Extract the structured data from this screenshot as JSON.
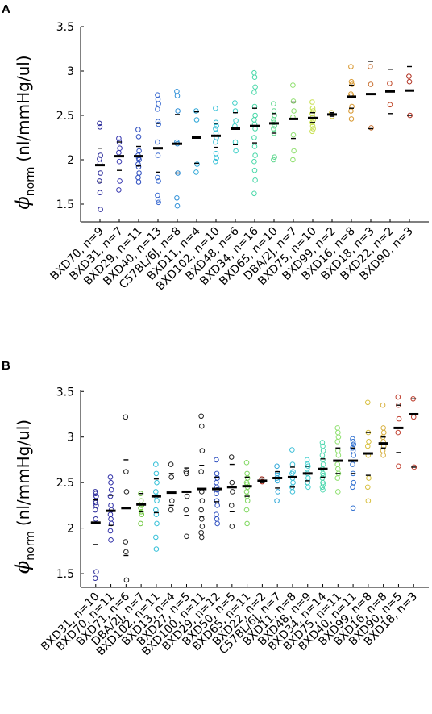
{
  "chart_data": [
    {
      "panel": "A",
      "type": "scatter",
      "ylabel_symbol": "ϕ",
      "ylabel_subscript": "norm",
      "ylabel_units": "(nl/mmHg/ul)",
      "ylim": [
        1.3,
        3.5
      ],
      "yticks": [
        "1.5",
        "2",
        "2.5",
        "3",
        "3.5"
      ],
      "ytick_values": [
        1.5,
        2,
        2.5,
        3,
        3.5
      ],
      "grid": false,
      "categories": [
        "BXD70, n=9",
        "BXD31, n=7",
        "BXD29, n=11",
        "BXD40, n=13",
        "C57BL/6J, n=8",
        "BXD11, n=4",
        "BXD102, n=10",
        "BXD48, n=6",
        "BXD34, n=16",
        "BXD65, n=10",
        "DBA/2J, n=7",
        "BXD75, n=10",
        "BXD99, n=2",
        "BXD16, n=8",
        "BXD18, n=3",
        "BXD22, n=2",
        "BXD90, n=3"
      ],
      "colors": [
        "#2a2a9a",
        "#3838b0",
        "#2f4fc0",
        "#3a6ad0",
        "#2f90d8",
        "#2fa8d8",
        "#35c0d8",
        "#40d0c8",
        "#48d8a8",
        "#60d890",
        "#90e070",
        "#c8e050",
        "#d8c840",
        "#d89830",
        "#c87030",
        "#c04828",
        "#b03020"
      ],
      "points": [
        [
          2.41,
          2.37,
          2.05,
          2.01,
          1.96,
          1.85,
          1.76,
          1.63,
          1.44
        ],
        [
          2.24,
          2.2,
          2.13,
          2.08,
          1.98,
          1.76,
          1.66
        ],
        [
          2.34,
          2.26,
          2.1,
          2.05,
          2.02,
          2.0,
          1.95,
          1.92,
          1.85,
          1.8,
          1.75
        ],
        [
          2.73,
          2.68,
          2.63,
          2.57,
          2.43,
          2.4,
          2.2,
          2.05,
          1.76,
          1.6,
          1.55,
          1.52,
          1.8
        ],
        [
          2.77,
          2.72,
          2.55,
          2.2,
          2.18,
          1.85,
          1.57,
          1.48
        ],
        [
          2.55,
          2.45,
          1.95,
          1.86
        ],
        [
          2.58,
          2.42,
          2.38,
          2.35,
          2.3,
          2.25,
          2.2,
          2.07,
          2.02,
          1.98
        ],
        [
          2.64,
          2.55,
          2.44,
          2.38,
          2.2,
          2.1
        ],
        [
          2.98,
          2.93,
          2.82,
          2.76,
          2.6,
          2.5,
          2.45,
          2.4,
          2.35,
          2.25,
          2.15,
          2.05,
          1.98,
          1.88,
          1.77,
          1.62
        ],
        [
          2.63,
          2.55,
          2.5,
          2.45,
          2.42,
          2.38,
          2.35,
          2.3,
          2.03,
          2.0
        ],
        [
          2.84,
          2.66,
          2.55,
          2.48,
          2.28,
          2.1,
          2.0
        ],
        [
          2.65,
          2.58,
          2.55,
          2.52,
          2.48,
          2.45,
          2.42,
          2.38,
          2.35,
          2.32
        ],
        [
          2.53,
          2.49
        ],
        [
          3.05,
          2.88,
          2.85,
          2.74,
          2.72,
          2.6,
          2.55,
          2.46
        ],
        [
          3.05,
          2.85,
          2.36
        ],
        [
          2.86,
          2.62
        ],
        [
          2.94,
          2.88,
          2.5
        ]
      ],
      "means": [
        1.94,
        2.04,
        2.04,
        2.13,
        2.18,
        2.25,
        2.27,
        2.35,
        2.38,
        2.41,
        2.46,
        2.47,
        2.51,
        2.71,
        2.74,
        2.77,
        2.78
      ],
      "whiskers": [
        [
          1.75,
          2.13
        ],
        [
          1.88,
          2.2
        ],
        [
          1.93,
          2.15
        ],
        [
          1.86,
          2.41
        ],
        [
          1.85,
          2.51
        ],
        [
          1.96,
          2.54
        ],
        [
          2.14,
          2.41
        ],
        [
          2.17,
          2.53
        ],
        [
          2.19,
          2.58
        ],
        [
          2.3,
          2.52
        ],
        [
          2.24,
          2.65
        ],
        [
          2.42,
          2.53
        ],
        [
          2.49,
          2.53
        ],
        [
          2.58,
          2.84
        ],
        [
          2.35,
          3.11
        ],
        [
          2.52,
          3.02
        ],
        [
          2.5,
          3.05
        ]
      ]
    },
    {
      "panel": "B",
      "type": "scatter",
      "ylabel_symbol": "ϕ",
      "ylabel_subscript": "norm",
      "ylabel_units": "(nl/mmHg/ul)",
      "ylim": [
        1.35,
        3.52
      ],
      "yticks": [
        "1.5",
        "2",
        "2.5",
        "3",
        "3.5"
      ],
      "ytick_values": [
        1.5,
        2,
        2.5,
        3,
        3.5
      ],
      "grid": false,
      "categories": [
        "BXD31, n=10",
        "BXD70, n=11",
        "BXD71, n=6",
        "DBA/2J, n=7",
        "BXD102, n=11",
        "BXD13, n=4",
        "BXD27, n=5",
        "BXD100, n=11",
        "BXD29, n=12",
        "BXD50, n=5",
        "BXD65, n=11",
        "BXD22, n=2",
        "C57BL/6J, n=7",
        "BXD11, n=8",
        "BXD48, n=9",
        "BXD34, n=14",
        "BXD75, n=11",
        "BXD40, n=11",
        "BXD99, n=8",
        "BXD16, n=8",
        "BXD90, n=5",
        "BXD18, n=3"
      ],
      "colors": [
        "#2a2a9a",
        "#3030a8",
        "#222222",
        "#70c840",
        "#35c0d8",
        "#222222",
        "#222222",
        "#222222",
        "#2f50c0",
        "#222222",
        "#80d860",
        "#b02a1a",
        "#30a8d8",
        "#40c0d8",
        "#48d0d0",
        "#50d8b0",
        "#90e070",
        "#3070d0",
        "#d8c040",
        "#d8b040",
        "#c04030",
        "#c04030"
      ],
      "points": [
        [
          2.4,
          2.38,
          2.35,
          2.3,
          2.28,
          2.25,
          2.2,
          2.1,
          1.52,
          1.45
        ],
        [
          2.56,
          2.5,
          2.42,
          2.35,
          2.25,
          2.2,
          2.15,
          2.1,
          2.05,
          1.97,
          1.87
        ],
        [
          3.22,
          2.62,
          2.4,
          1.85,
          1.74,
          1.43
        ],
        [
          2.38,
          2.3,
          2.25,
          2.22,
          2.18,
          2.15,
          2.05
        ],
        [
          2.7,
          2.6,
          2.5,
          2.4,
          2.35,
          2.3,
          2.2,
          2.15,
          2.05,
          1.9,
          1.77
        ],
        [
          2.7,
          2.56,
          2.3,
          2.2
        ],
        [
          2.62,
          2.6,
          2.35,
          2.2,
          1.91
        ],
        [
          3.23,
          3.12,
          2.85,
          2.62,
          2.4,
          2.3,
          2.2,
          2.1,
          2.02,
          1.95,
          1.9
        ],
        [
          2.75,
          2.6,
          2.55,
          2.5,
          2.45,
          2.42,
          2.38,
          2.3,
          2.25,
          2.15,
          2.1,
          2.05
        ],
        [
          2.78,
          2.5,
          2.4,
          2.25,
          2.02
        ],
        [
          2.72,
          2.6,
          2.55,
          2.5,
          2.48,
          2.45,
          2.4,
          2.35,
          2.3,
          2.2,
          2.05
        ],
        [
          2.54,
          2.51
        ],
        [
          2.68,
          2.6,
          2.58,
          2.55,
          2.52,
          2.4,
          2.3
        ],
        [
          2.86,
          2.7,
          2.62,
          2.6,
          2.55,
          2.5,
          2.45,
          2.4
        ],
        [
          2.75,
          2.7,
          2.68,
          2.65,
          2.6,
          2.55,
          2.5,
          2.5,
          2.45
        ],
        [
          2.94,
          2.9,
          2.85,
          2.8,
          2.75,
          2.7,
          2.65,
          2.6,
          2.58,
          2.55,
          2.5,
          2.48,
          2.45,
          2.42
        ],
        [
          3.1,
          3.05,
          3.0,
          2.95,
          2.85,
          2.8,
          2.7,
          2.65,
          2.6,
          2.55,
          2.4
        ],
        [
          2.98,
          2.95,
          2.92,
          2.88,
          2.85,
          2.8,
          2.7,
          2.6,
          2.5,
          2.45,
          2.22
        ],
        [
          3.38,
          3.05,
          2.95,
          2.9,
          2.8,
          2.55,
          2.45,
          2.3
        ],
        [
          3.35,
          3.1,
          3.05,
          3.0,
          2.95,
          2.9,
          2.85,
          2.8
        ],
        [
          3.44,
          3.35,
          3.2,
          3.05,
          2.68
        ],
        [
          3.42,
          3.22,
          2.67
        ]
      ],
      "means": [
        2.06,
        2.19,
        2.22,
        2.26,
        2.35,
        2.39,
        2.4,
        2.43,
        2.43,
        2.45,
        2.46,
        2.52,
        2.55,
        2.56,
        2.6,
        2.65,
        2.74,
        2.74,
        2.82,
        2.93,
        3.1,
        3.25
      ],
      "whiskers": [
        [
          1.82,
          2.31
        ],
        [
          2.03,
          2.36
        ],
        [
          1.7,
          2.75
        ],
        [
          2.18,
          2.38
        ],
        [
          2.17,
          2.54
        ],
        [
          2.25,
          2.6
        ],
        [
          2.14,
          2.66
        ],
        [
          2.13,
          2.69
        ],
        [
          2.29,
          2.56
        ],
        [
          2.18,
          2.7
        ],
        [
          2.35,
          2.56
        ],
        [
          2.5,
          2.55
        ],
        [
          2.44,
          2.62
        ],
        [
          2.45,
          2.67
        ],
        [
          2.52,
          2.68
        ],
        [
          2.56,
          2.76
        ],
        [
          2.6,
          2.88
        ],
        [
          2.6,
          2.88
        ],
        [
          2.58,
          3.05
        ],
        [
          2.88,
          3.0
        ],
        [
          2.83,
          3.35
        ],
        [
          2.67,
          3.42
        ]
      ]
    }
  ]
}
